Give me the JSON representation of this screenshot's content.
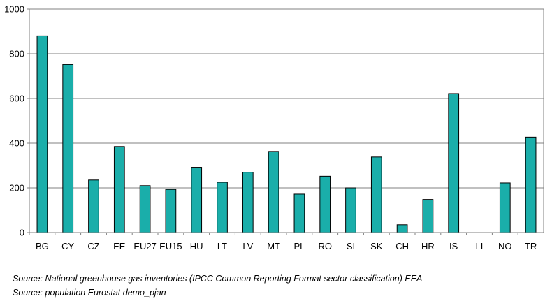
{
  "chart_data": {
    "type": "bar",
    "title": "",
    "xlabel": "",
    "ylabel": "",
    "ylim": [
      0,
      1000
    ],
    "yticks": [
      0,
      200,
      400,
      600,
      800,
      1000
    ],
    "grid": true,
    "categories": [
      "BG",
      "CY",
      "CZ",
      "EE",
      "EU27",
      "EU15",
      "HU",
      "LT",
      "LV",
      "MT",
      "PL",
      "RO",
      "SI",
      "SK",
      "CH",
      "HR",
      "IS",
      "LI",
      "NO",
      "TR"
    ],
    "values": [
      880,
      752,
      235,
      385,
      210,
      193,
      292,
      225,
      270,
      363,
      172,
      252,
      200,
      338,
      35,
      148,
      622,
      0,
      222,
      427
    ],
    "bar_color": "#1aaeaa",
    "edge_color": "#000000"
  },
  "sources": [
    "Source: National greenhouse gas inventories (IPCC Common Reporting Format sector classification) EEA",
    "Source: population Eurostat demo_pjan"
  ]
}
